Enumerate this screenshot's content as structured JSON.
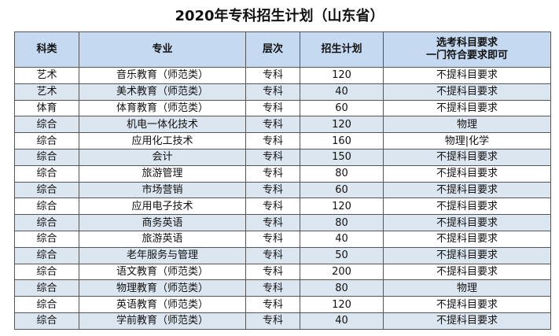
{
  "title": "2020年专科招生计划（山东省）",
  "table": {
    "header": [
      "科类",
      "专业",
      "层次",
      "招生计划",
      "选考科目要求\n一门符合要求即可"
    ],
    "rows": [
      [
        "艺术",
        "音乐教育（师范类）",
        "专科",
        120,
        "不提科目要求"
      ],
      [
        "艺术",
        "美术教育（师范类）",
        "专科",
        40,
        "不提科目要求"
      ],
      [
        "体育",
        "体育教育（师范类）",
        "专科",
        60,
        "不提科目要求"
      ],
      [
        "综合",
        "机电一体化技术",
        "专科",
        120,
        "物理"
      ],
      [
        "综合",
        "应用化工技术",
        "专科",
        160,
        "物理|化学"
      ],
      [
        "综合",
        "会计",
        "专科",
        150,
        "不提科目要求"
      ],
      [
        "综合",
        "旅游管理",
        "专科",
        80,
        "不提科目要求"
      ],
      [
        "综合",
        "市场营销",
        "专科",
        60,
        "不提科目要求"
      ],
      [
        "综合",
        "应用电子技术",
        "专科",
        120,
        "不提科目要求"
      ],
      [
        "综合",
        "商务英语",
        "专科",
        80,
        "不提科目要求"
      ],
      [
        "综合",
        "旅游英语",
        "专科",
        40,
        "不提科目要求"
      ],
      [
        "综合",
        "老年服务与管理",
        "专科",
        50,
        "不提科目要求"
      ],
      [
        "综合",
        "语文教育（师范类）",
        "专科",
        200,
        "不提科目要求"
      ],
      [
        "综合",
        "物理教育（师范类）",
        "专科",
        80,
        "物理"
      ],
      [
        "综合",
        "英语教育（师范类）",
        "专科",
        120,
        "不提科目要求"
      ],
      [
        "综合",
        "学前教育（师范类）",
        "专科",
        40,
        "不提科目要求"
      ]
    ]
  }
}
